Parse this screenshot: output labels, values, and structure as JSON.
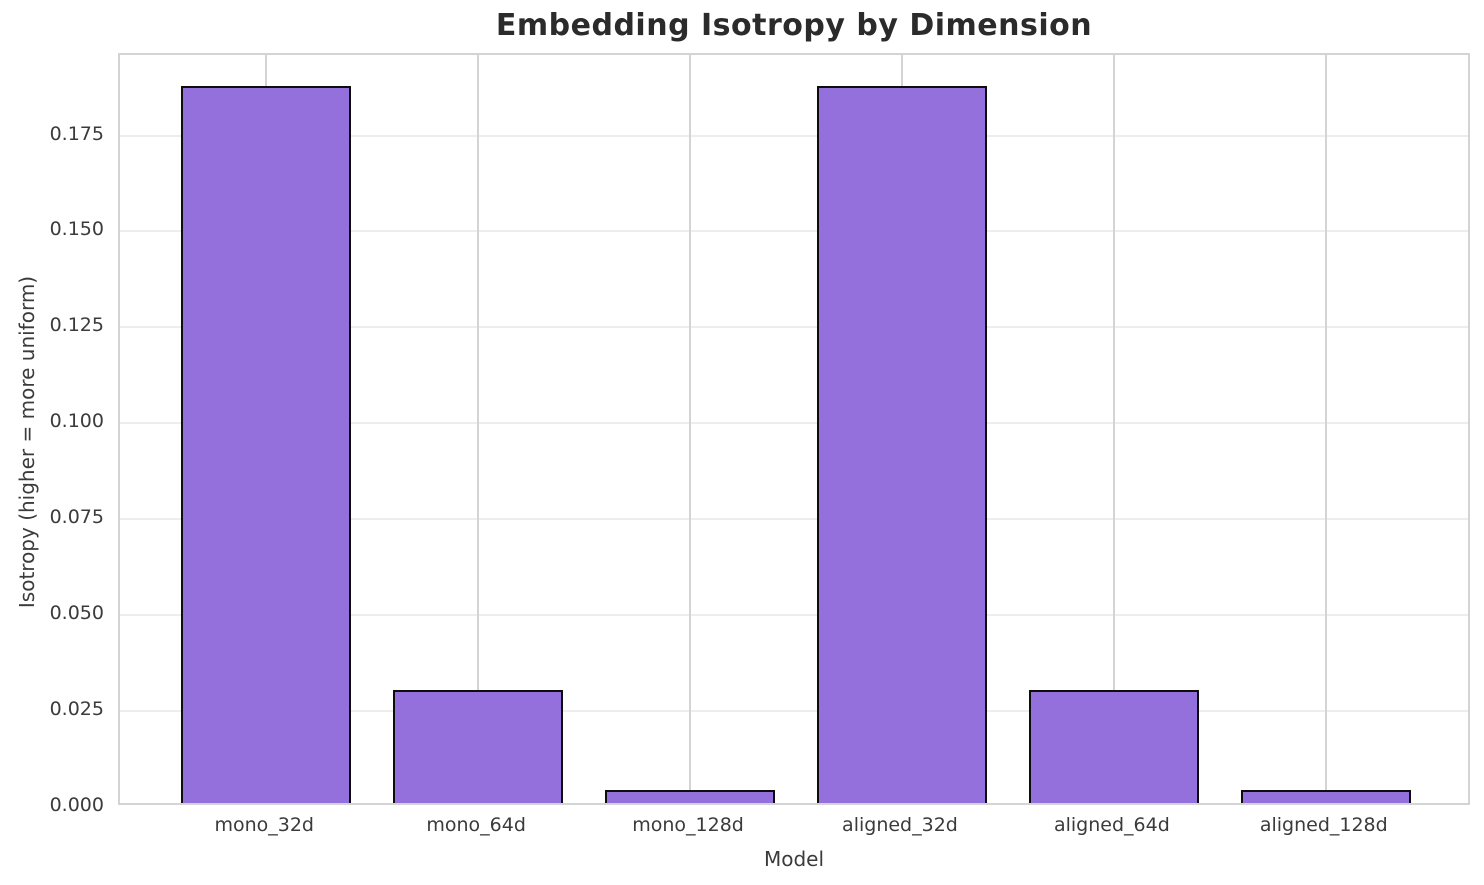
{
  "chart_data": {
    "type": "bar",
    "title": "Embedding Isotropy by Dimension",
    "xlabel": "Model",
    "ylabel": "Isotropy (higher = more uniform)",
    "categories": [
      "mono_32d",
      "mono_64d",
      "mono_128d",
      "aligned_32d",
      "aligned_64d",
      "aligned_128d"
    ],
    "values": [
      0.1868,
      0.0295,
      0.0034,
      0.1868,
      0.0295,
      0.0034
    ],
    "ylim": [
      0,
      0.196
    ],
    "yticks": [
      0,
      0.025,
      0.05,
      0.075,
      0.1,
      0.125,
      0.15,
      0.175
    ],
    "ytick_labels": [
      "0.000",
      "0.025",
      "0.050",
      "0.075",
      "0.100",
      "0.125",
      "0.150",
      "0.175"
    ],
    "grid": true,
    "legend": false,
    "bar_width_fraction": 0.8,
    "colors": {
      "bar_fill": "#9370DB",
      "bar_edge": "#0d0d0d",
      "grid_horizontal": "#ededed",
      "grid_vertical": "#d4d4d4",
      "spine": "#d4d4d4",
      "title_text": "#2b2b2b",
      "tick_text": "#3b3b3b",
      "background": "#ffffff"
    }
  }
}
